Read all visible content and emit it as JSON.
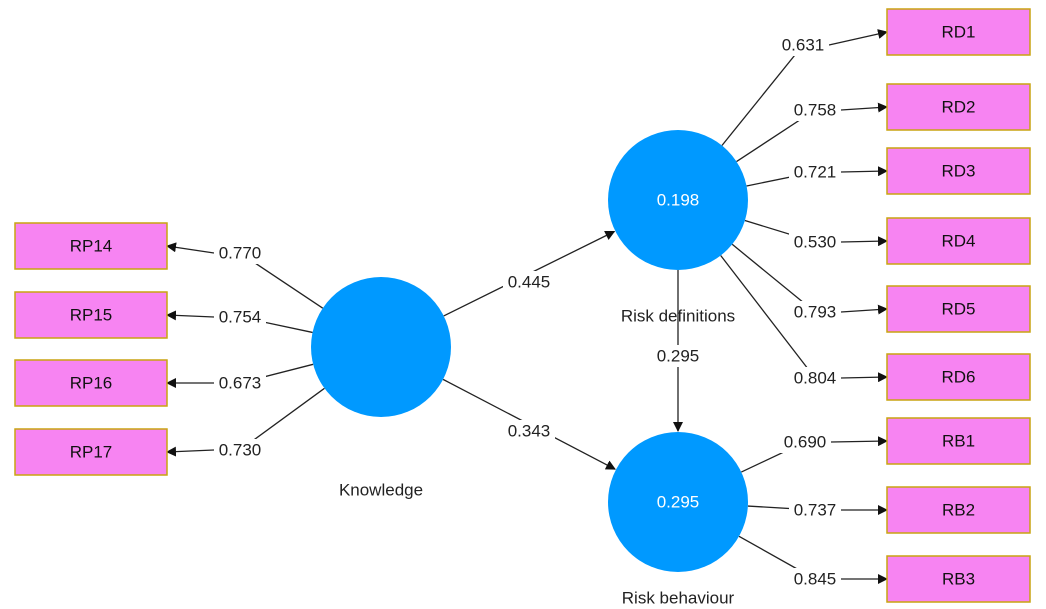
{
  "colors": {
    "construct_fill": "#0099ff",
    "indicator_fill": "#f784f2",
    "indicator_border": "#c9a411",
    "edge": "#222222"
  },
  "constructs": [
    {
      "id": "knowledge",
      "name": "Knowledge",
      "r2": ""
    },
    {
      "id": "risk_definitions",
      "name": "Risk definitions",
      "r2": "0.198"
    },
    {
      "id": "risk_behaviour",
      "name": "Risk behaviour",
      "r2": "0.295"
    }
  ],
  "indicators": [
    {
      "label": "RP14",
      "construct": "knowledge",
      "loading": "0.770"
    },
    {
      "label": "RP15",
      "construct": "knowledge",
      "loading": "0.754"
    },
    {
      "label": "RP16",
      "construct": "knowledge",
      "loading": "0.673"
    },
    {
      "label": "RP17",
      "construct": "knowledge",
      "loading": "0.730"
    },
    {
      "label": "RD1",
      "construct": "risk_definitions",
      "loading": "0.631"
    },
    {
      "label": "RD2",
      "construct": "risk_definitions",
      "loading": "0.758"
    },
    {
      "label": "RD3",
      "construct": "risk_definitions",
      "loading": "0.721"
    },
    {
      "label": "RD4",
      "construct": "risk_definitions",
      "loading": "0.530"
    },
    {
      "label": "RD5",
      "construct": "risk_definitions",
      "loading": "0.793"
    },
    {
      "label": "RD6",
      "construct": "risk_definitions",
      "loading": "0.804"
    },
    {
      "label": "RB1",
      "construct": "risk_behaviour",
      "loading": "0.690"
    },
    {
      "label": "RB2",
      "construct": "risk_behaviour",
      "loading": "0.737"
    },
    {
      "label": "RB3",
      "construct": "risk_behaviour",
      "loading": "0.845"
    }
  ],
  "paths": [
    {
      "from": "knowledge",
      "to": "risk_definitions",
      "coefficient": "0.445"
    },
    {
      "from": "knowledge",
      "to": "risk_behaviour",
      "coefficient": "0.343"
    },
    {
      "from": "risk_definitions",
      "to": "risk_behaviour",
      "coefficient": "0.295"
    }
  ]
}
